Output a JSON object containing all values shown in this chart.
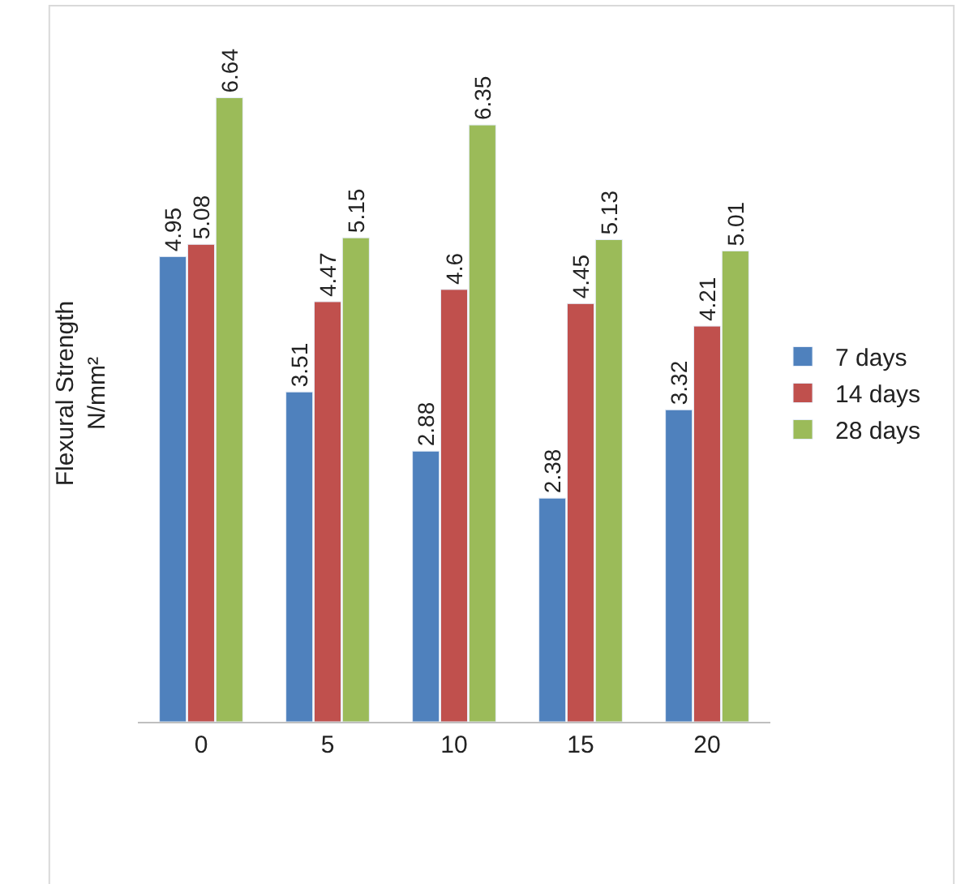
{
  "chart_data": {
    "type": "bar",
    "ylabel": "Flexural Strength\nN/mm²",
    "categories": [
      "0",
      "5",
      "10",
      "15",
      "20"
    ],
    "series": [
      {
        "name": "7 days",
        "color": "#4f81bd",
        "values": [
          4.95,
          3.51,
          2.88,
          2.38,
          3.32
        ]
      },
      {
        "name": "14 days",
        "color": "#c0504d",
        "values": [
          5.08,
          4.47,
          4.6,
          4.45,
          4.21
        ]
      },
      {
        "name": "28 days",
        "color": "#9bbb59",
        "values": [
          6.64,
          5.15,
          6.35,
          5.13,
          5.01
        ]
      }
    ],
    "data_labels": true,
    "legend": "right",
    "tick_labels": "x"
  }
}
